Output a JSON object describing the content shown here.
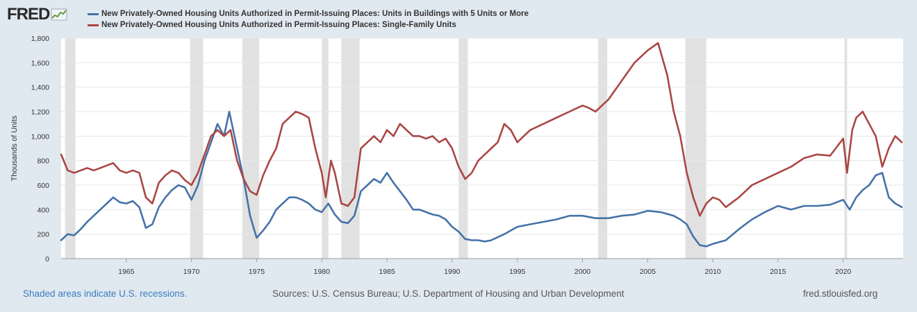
{
  "header": {
    "logo_text": "FRED",
    "logo_icon": "line-chart-icon"
  },
  "footer": {
    "recessions_note": "Shaded areas indicate U.S. recessions.",
    "sources": "Sources: U.S. Census Bureau; U.S. Department of Housing and Urban Development",
    "site": "fred.stlouisfed.org"
  },
  "colors": {
    "background": "#e1e9f0",
    "plot_background": "#ffffff",
    "recession_shade": "#e1e1e1",
    "series_5plus": "#4572a7",
    "series_single": "#aa4643"
  },
  "chart_data": {
    "type": "line",
    "title": "",
    "xlabel": "",
    "ylabel": "Thousands of Units",
    "xlim": [
      1960.0,
      2024.6
    ],
    "ylim": [
      0,
      1800
    ],
    "y_ticks": [
      0,
      200,
      400,
      600,
      800,
      1000,
      1200,
      1400,
      1600,
      1800
    ],
    "y_tick_labels": [
      "0",
      "200",
      "400",
      "600",
      "800",
      "1,000",
      "1,200",
      "1,400",
      "1,600",
      "1,800"
    ],
    "x_ticks": [
      1965,
      1970,
      1975,
      1980,
      1985,
      1990,
      1995,
      2000,
      2005,
      2010,
      2015,
      2020
    ],
    "x_tick_labels": [
      "1965",
      "1970",
      "1975",
      "1980",
      "1985",
      "1990",
      "1995",
      "2000",
      "2005",
      "2010",
      "2015",
      "2020"
    ],
    "grid": true,
    "legend_position": "top-left",
    "recessions": [
      [
        1960.3,
        1961.1
      ],
      [
        1969.9,
        1970.9
      ],
      [
        1973.9,
        1975.2
      ],
      [
        1980.0,
        1980.5
      ],
      [
        1981.5,
        1982.9
      ],
      [
        1990.5,
        1991.2
      ],
      [
        2001.2,
        2001.9
      ],
      [
        2007.9,
        2009.5
      ],
      [
        2020.1,
        2020.3
      ]
    ],
    "series": [
      {
        "name": "New Privately-Owned Housing Units Authorized in Permit-Issuing Places: Units in Buildings with 5 Units or More",
        "color": "#4572a7",
        "x": [
          1960.0,
          1960.5,
          1961.0,
          1961.5,
          1962.0,
          1962.5,
          1963.0,
          1963.5,
          1964.0,
          1964.5,
          1965.0,
          1965.5,
          1966.0,
          1966.5,
          1967.0,
          1967.5,
          1968.0,
          1968.5,
          1969.0,
          1969.5,
          1970.0,
          1970.5,
          1971.0,
          1971.5,
          1972.0,
          1972.5,
          1972.9,
          1973.5,
          1974.0,
          1974.5,
          1975.0,
          1975.5,
          1976.0,
          1976.5,
          1977.0,
          1977.5,
          1978.0,
          1978.5,
          1979.0,
          1979.5,
          1980.0,
          1980.5,
          1981.0,
          1981.5,
          1982.0,
          1982.5,
          1983.0,
          1983.5,
          1984.0,
          1984.5,
          1985.0,
          1985.5,
          1986.0,
          1986.5,
          1987.0,
          1987.5,
          1988.0,
          1988.5,
          1989.0,
          1989.5,
          1990.0,
          1990.5,
          1991.0,
          1991.5,
          1992.0,
          1992.5,
          1993.0,
          1994.0,
          1995.0,
          1996.0,
          1997.0,
          1998.0,
          1999.0,
          2000.0,
          2001.0,
          2002.0,
          2003.0,
          2004.0,
          2005.0,
          2006.0,
          2007.0,
          2007.5,
          2008.0,
          2008.5,
          2009.0,
          2009.5,
          2010.0,
          2011.0,
          2012.0,
          2013.0,
          2014.0,
          2015.0,
          2016.0,
          2017.0,
          2018.0,
          2019.0,
          2020.0,
          2020.5,
          2021.0,
          2021.5,
          2022.0,
          2022.5,
          2023.0,
          2023.5,
          2024.0,
          2024.5
        ],
        "values": [
          150,
          200,
          190,
          240,
          300,
          350,
          400,
          450,
          500,
          460,
          450,
          470,
          420,
          250,
          280,
          420,
          500,
          560,
          600,
          580,
          480,
          600,
          800,
          950,
          1100,
          1000,
          1200,
          900,
          650,
          350,
          170,
          230,
          300,
          400,
          450,
          500,
          500,
          480,
          450,
          400,
          380,
          450,
          360,
          300,
          290,
          350,
          550,
          600,
          650,
          620,
          700,
          620,
          550,
          480,
          400,
          400,
          380,
          360,
          350,
          320,
          260,
          220,
          160,
          150,
          150,
          140,
          150,
          200,
          260,
          280,
          300,
          320,
          350,
          350,
          330,
          330,
          350,
          360,
          390,
          380,
          350,
          320,
          280,
          180,
          110,
          100,
          120,
          150,
          240,
          320,
          380,
          430,
          400,
          430,
          430,
          440,
          480,
          400,
          500,
          560,
          600,
          680,
          700,
          500,
          450,
          420
        ]
      },
      {
        "name": "New Privately-Owned Housing Units Authorized in Permit-Issuing Places: Single-Family Units",
        "color": "#aa4643",
        "x": [
          1960.0,
          1960.5,
          1961.0,
          1961.5,
          1962.0,
          1962.5,
          1963.0,
          1963.5,
          1964.0,
          1964.5,
          1965.0,
          1965.5,
          1966.0,
          1966.5,
          1967.0,
          1967.5,
          1968.0,
          1968.5,
          1969.0,
          1969.5,
          1970.0,
          1970.5,
          1971.0,
          1971.5,
          1972.0,
          1972.5,
          1973.0,
          1973.5,
          1974.0,
          1974.5,
          1975.0,
          1975.5,
          1976.0,
          1976.5,
          1977.0,
          1977.5,
          1978.0,
          1978.5,
          1979.0,
          1979.5,
          1980.0,
          1980.3,
          1980.7,
          1981.0,
          1981.5,
          1982.0,
          1982.5,
          1983.0,
          1983.5,
          1984.0,
          1984.5,
          1985.0,
          1985.5,
          1986.0,
          1986.5,
          1987.0,
          1987.5,
          1988.0,
          1988.5,
          1989.0,
          1989.5,
          1990.0,
          1990.5,
          1991.0,
          1991.5,
          1992.0,
          1992.5,
          1993.0,
          1993.5,
          1994.0,
          1994.5,
          1995.0,
          1995.5,
          1996.0,
          1997.0,
          1998.0,
          1999.0,
          2000.0,
          2000.5,
          2001.0,
          2002.0,
          2003.0,
          2004.0,
          2005.0,
          2005.8,
          2006.5,
          2007.0,
          2007.5,
          2008.0,
          2008.5,
          2009.0,
          2009.5,
          2010.0,
          2010.5,
          2011.0,
          2012.0,
          2013.0,
          2014.0,
          2015.0,
          2016.0,
          2017.0,
          2018.0,
          2019.0,
          2020.0,
          2020.3,
          2020.7,
          2021.0,
          2021.5,
          2022.0,
          2022.5,
          2023.0,
          2023.5,
          2024.0,
          2024.5
        ],
        "values": [
          850,
          720,
          700,
          720,
          740,
          720,
          740,
          760,
          780,
          720,
          700,
          720,
          700,
          500,
          450,
          620,
          680,
          720,
          700,
          640,
          600,
          700,
          850,
          1000,
          1050,
          1000,
          1050,
          800,
          650,
          550,
          520,
          680,
          800,
          900,
          1100,
          1150,
          1200,
          1180,
          1150,
          900,
          700,
          500,
          800,
          700,
          450,
          430,
          500,
          900,
          950,
          1000,
          950,
          1050,
          1000,
          1100,
          1050,
          1000,
          1000,
          980,
          1000,
          950,
          980,
          900,
          750,
          650,
          700,
          800,
          850,
          900,
          950,
          1100,
          1050,
          950,
          1000,
          1050,
          1100,
          1150,
          1200,
          1250,
          1230,
          1200,
          1300,
          1450,
          1600,
          1700,
          1760,
          1500,
          1200,
          1000,
          700,
          500,
          350,
          450,
          500,
          480,
          420,
          500,
          600,
          650,
          700,
          750,
          820,
          850,
          840,
          980,
          700,
          1050,
          1150,
          1200,
          1100,
          1000,
          750,
          900,
          1000,
          950
        ]
      }
    ]
  }
}
